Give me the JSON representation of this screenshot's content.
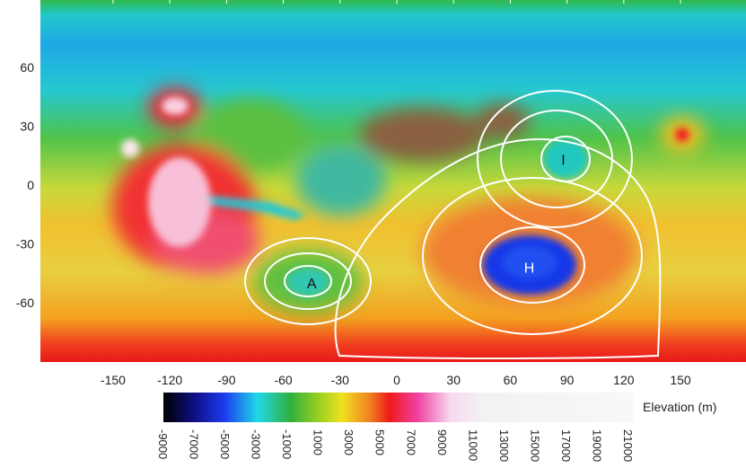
{
  "map": {
    "lon_ticks": [
      -150,
      -120,
      -90,
      -60,
      -30,
      0,
      30,
      60,
      90,
      120,
      150
    ],
    "lat_ticks": [
      60,
      30,
      0,
      -30,
      -60
    ],
    "regions": [
      {
        "label": "A",
        "lon": -45,
        "lat": -50
      },
      {
        "label": "H",
        "lon": 70,
        "lat": -42
      },
      {
        "label": "I",
        "lon": 88,
        "lat": 13
      }
    ],
    "colorbar": {
      "label": "Elevation (m)",
      "ticks": [
        -9000,
        -7000,
        -5000,
        -3000,
        -1000,
        1000,
        3000,
        5000,
        7000,
        9000,
        11000,
        13000,
        15000,
        17000,
        19000,
        21000
      ]
    }
  }
}
